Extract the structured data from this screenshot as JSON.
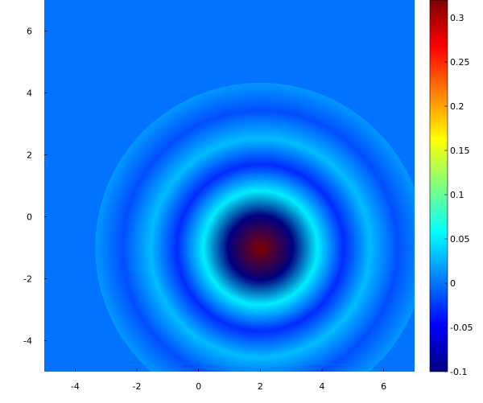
{
  "chart_data": {
    "type": "heatmap",
    "title": "",
    "xlabel": "",
    "ylabel": "",
    "xlim": [
      -5,
      7
    ],
    "ylim": [
      -5,
      7
    ],
    "x_ticks": [
      -4,
      -2,
      0,
      2,
      4,
      6
    ],
    "y_ticks": [
      6,
      4,
      2,
      0,
      -2,
      -4
    ],
    "x_tick_labels": [
      "-4",
      "-2",
      "0",
      "2",
      "4",
      "6"
    ],
    "y_tick_labels": [
      "6",
      "4",
      "2",
      "0",
      "-2",
      "-4"
    ],
    "colormap": "jet",
    "colorbar": {
      "min": -0.1,
      "max": 0.32,
      "ticks": [
        0.3,
        0.25,
        0.2,
        0.15,
        0.1,
        0.05,
        0,
        -0.05,
        -0.1
      ],
      "tick_labels": [
        "0.3",
        "0.25",
        "0.2",
        "0.15",
        "0.1",
        "0.05",
        "0",
        "-0.05",
        "-0.1"
      ]
    },
    "center": [
      2,
      -1
    ],
    "peak_value": 0.32,
    "background_value": 0.0,
    "ring_radii": [
      0,
      1.05,
      1.85,
      2.7,
      3.55,
      4.45,
      5.35
    ],
    "ring_values": [
      0.32,
      -0.1,
      0.05,
      -0.03,
      0.03,
      -0.015,
      0.015
    ]
  }
}
